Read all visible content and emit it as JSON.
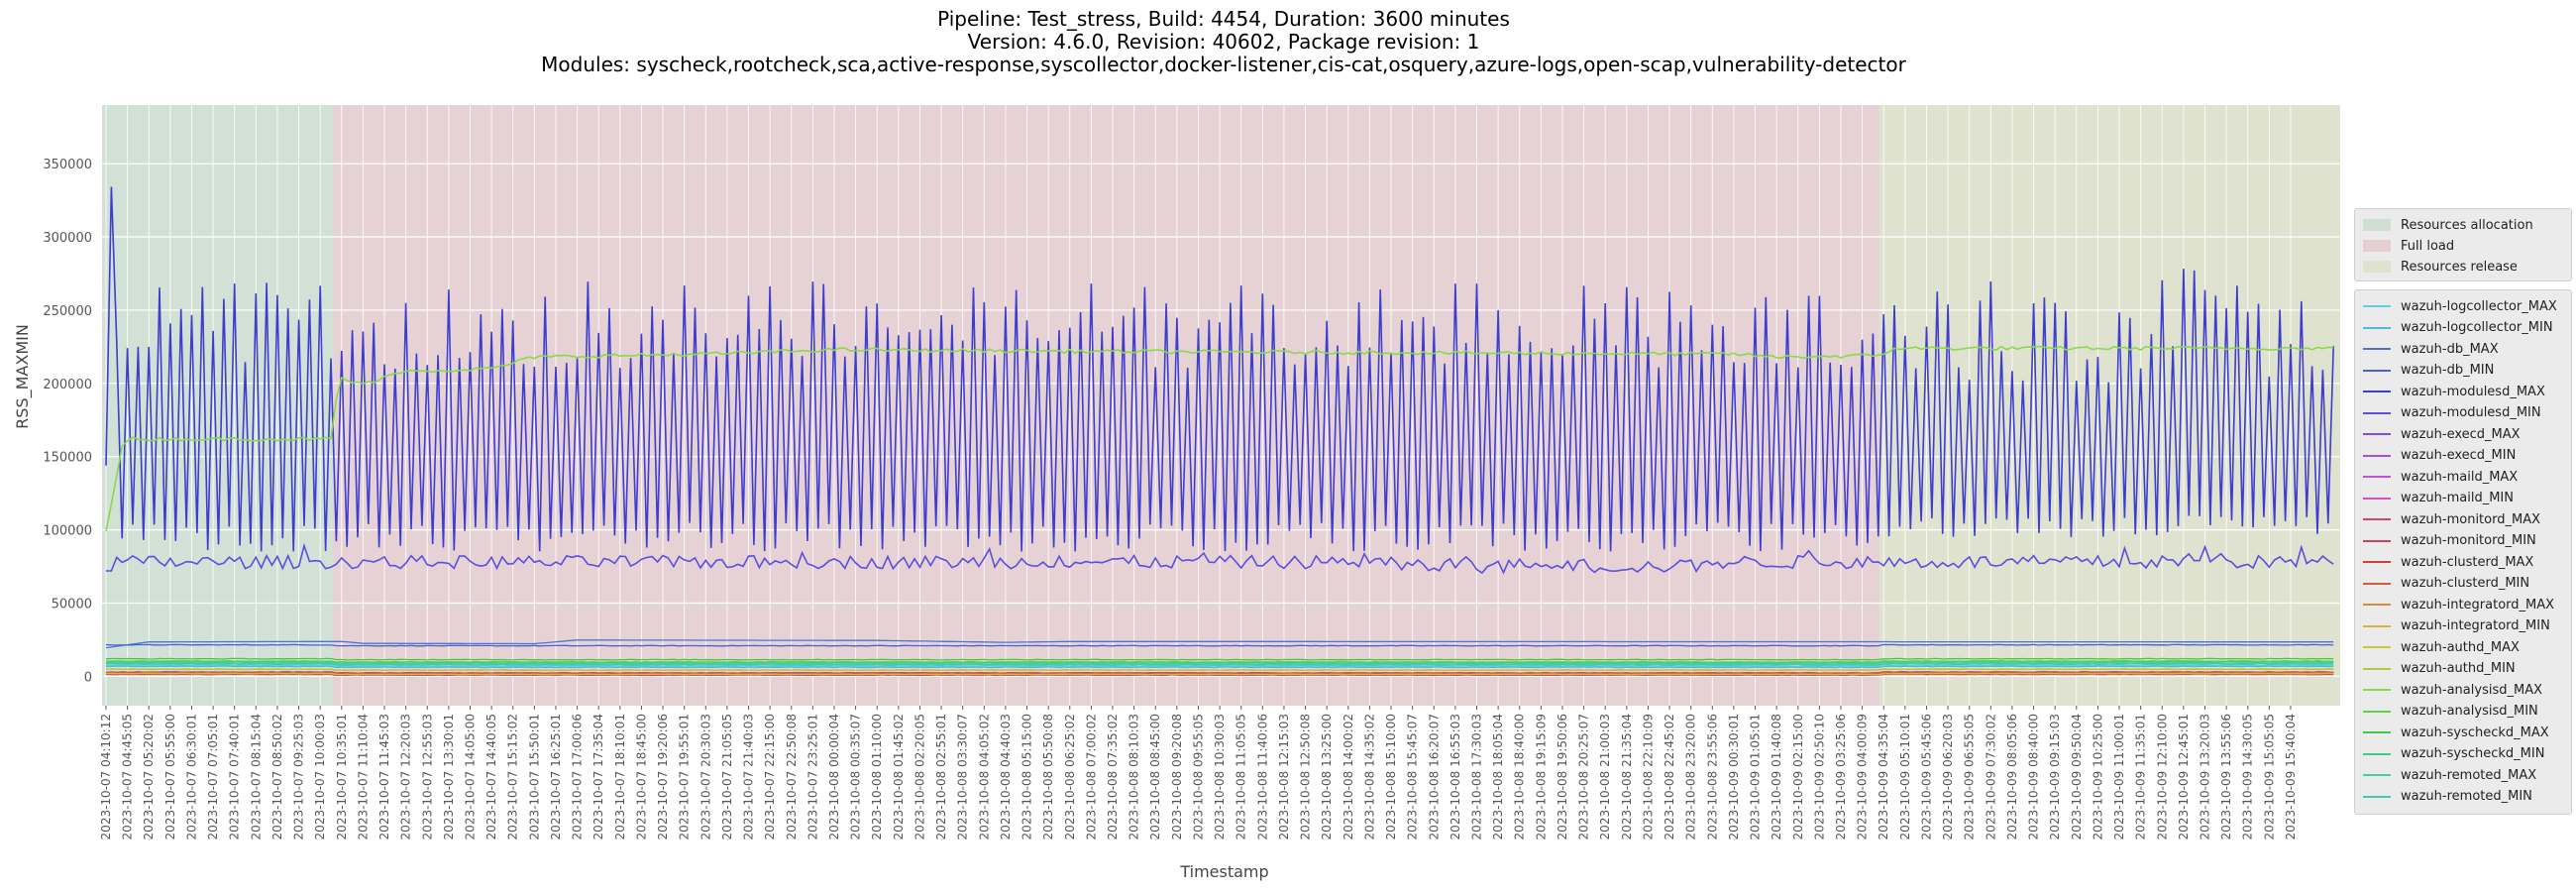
{
  "chart_data": {
    "type": "line",
    "title_lines": [
      "Pipeline: Test_stress, Build: 4454, Duration: 3600 minutes",
      "Version: 4.6.0, Revision: 40602, Package revision: 1",
      "Modules: syscheck,rootcheck,sca,active-response,syscollector,docker-listener,cis-cat,osquery,azure-logs,open-scap,vulnerability-detector"
    ],
    "xlabel": "Timestamp",
    "ylabel": "RSS_MAXMIN",
    "ylim": [
      -20000,
      390000
    ],
    "yticks": [
      0,
      50000,
      100000,
      150000,
      200000,
      250000,
      300000,
      350000
    ],
    "grid": true,
    "legend_position": "right",
    "x_ticks": [
      "2023-10-07 04:10:12",
      "2023-10-07 04:45:05",
      "2023-10-07 05:20:02",
      "2023-10-07 05:55:00",
      "2023-10-07 06:30:01",
      "2023-10-07 07:05:01",
      "2023-10-07 07:40:01",
      "2023-10-07 08:15:04",
      "2023-10-07 08:50:02",
      "2023-10-07 09:25:03",
      "2023-10-07 10:00:03",
      "2023-10-07 10:35:01",
      "2023-10-07 11:10:04",
      "2023-10-07 11:45:03",
      "2023-10-07 12:20:03",
      "2023-10-07 12:55:03",
      "2023-10-07 13:30:01",
      "2023-10-07 14:05:00",
      "2023-10-07 14:40:05",
      "2023-10-07 15:15:02",
      "2023-10-07 15:50:01",
      "2023-10-07 16:25:01",
      "2023-10-07 17:00:06",
      "2023-10-07 17:35:04",
      "2023-10-07 18:10:01",
      "2023-10-07 18:45:00",
      "2023-10-07 19:20:06",
      "2023-10-07 19:55:01",
      "2023-10-07 20:30:03",
      "2023-10-07 21:05:05",
      "2023-10-07 21:40:03",
      "2023-10-07 22:15:00",
      "2023-10-07 22:50:08",
      "2023-10-07 23:25:01",
      "2023-10-08 00:00:04",
      "2023-10-08 00:35:07",
      "2023-10-08 01:10:00",
      "2023-10-08 01:45:02",
      "2023-10-08 02:20:05",
      "2023-10-08 02:55:01",
      "2023-10-08 03:30:07",
      "2023-10-08 04:05:02",
      "2023-10-08 04:40:03",
      "2023-10-08 05:15:00",
      "2023-10-08 05:50:08",
      "2023-10-08 06:25:02",
      "2023-10-08 07:00:02",
      "2023-10-08 07:35:02",
      "2023-10-08 08:10:03",
      "2023-10-08 08:45:00",
      "2023-10-08 09:20:08",
      "2023-10-08 09:55:05",
      "2023-10-08 10:30:03",
      "2023-10-08 11:05:05",
      "2023-10-08 11:40:06",
      "2023-10-08 12:15:03",
      "2023-10-08 12:50:08",
      "2023-10-08 13:25:00",
      "2023-10-08 14:00:02",
      "2023-10-08 14:35:02",
      "2023-10-08 15:10:00",
      "2023-10-08 15:45:07",
      "2023-10-08 16:20:07",
      "2023-10-08 16:55:03",
      "2023-10-08 17:30:03",
      "2023-10-08 18:05:04",
      "2023-10-08 18:40:00",
      "2023-10-08 19:15:09",
      "2023-10-08 19:50:06",
      "2023-10-08 20:25:07",
      "2023-10-08 21:00:03",
      "2023-10-08 21:35:04",
      "2023-10-08 22:10:09",
      "2023-10-08 22:45:02",
      "2023-10-08 23:20:00",
      "2023-10-08 23:55:06",
      "2023-10-09 00:30:01",
      "2023-10-09 01:05:01",
      "2023-10-09 01:40:08",
      "2023-10-09 02:15:00",
      "2023-10-09 02:50:10",
      "2023-10-09 03:25:06",
      "2023-10-09 04:00:09",
      "2023-10-09 04:35:04",
      "2023-10-09 05:10:01",
      "2023-10-09 05:45:06",
      "2023-10-09 06:20:03",
      "2023-10-09 06:55:05",
      "2023-10-09 07:30:02",
      "2023-10-09 08:05:06",
      "2023-10-09 08:40:00",
      "2023-10-09 09:15:03",
      "2023-10-09 09:50:04",
      "2023-10-09 10:25:00",
      "2023-10-09 11:00:01",
      "2023-10-09 11:35:01",
      "2023-10-09 12:10:00",
      "2023-10-09 12:45:01",
      "2023-10-09 13:20:03",
      "2023-10-09 13:55:06",
      "2023-10-09 14:30:05",
      "2023-10-09 15:05:05",
      "2023-10-09 15:40:04"
    ],
    "phases": [
      {
        "name": "Resources allocation",
        "start_tick": 0,
        "end_tick": 10.6,
        "color": "#cfe0d2"
      },
      {
        "name": "Full load",
        "start_tick": 10.6,
        "end_tick": 82.8,
        "color": "#e6cfd2"
      },
      {
        "name": "Resources release",
        "start_tick": 82.8,
        "end_tick": 104.5,
        "color": "#dfe2cd"
      }
    ],
    "series": [
      {
        "name": "wazuh-logcollector_MAX",
        "color": "#5ecfe2",
        "base": 7500
      },
      {
        "name": "wazuh-logcollector_MIN",
        "color": "#56b6de",
        "base": 6800
      },
      {
        "name": "wazuh-db_MAX",
        "color": "#4a74dc",
        "base": 23500,
        "profile": [
          [
            0,
            19500
          ],
          [
            2,
            23500
          ],
          [
            11,
            23800
          ],
          [
            12,
            22500
          ],
          [
            20,
            22300
          ],
          [
            22,
            24800
          ],
          [
            36,
            24500
          ],
          [
            42,
            23200
          ],
          [
            45,
            23800
          ],
          [
            104,
            23500
          ]
        ]
      },
      {
        "name": "wazuh-db_MIN",
        "color": "#4a5fd8",
        "base": 21500
      },
      {
        "name": "wazuh-modulesd_MAX",
        "color": "#3d3dd0",
        "kind": "sawtooth"
      },
      {
        "name": "wazuh-modulesd_MIN",
        "color": "#5a4fe0",
        "kind": "lowband",
        "base": 78000
      },
      {
        "name": "wazuh-execd_MAX",
        "color": "#7c4fe0",
        "base": 3000
      },
      {
        "name": "wazuh-execd_MIN",
        "color": "#a24fe0",
        "base": 2900
      },
      {
        "name": "wazuh-maild_MAX",
        "color": "#c44fd9",
        "base": 2500
      },
      {
        "name": "wazuh-maild_MIN",
        "color": "#d94fb8",
        "base": 2400
      },
      {
        "name": "wazuh-monitord_MAX",
        "color": "#d9407f",
        "base": 1500
      },
      {
        "name": "wazuh-monitord_MIN",
        "color": "#d93d5a",
        "base": 1400
      },
      {
        "name": "wazuh-clusterd_MAX",
        "color": "#d93a3a",
        "base": 2800
      },
      {
        "name": "wazuh-clusterd_MIN",
        "color": "#d95a3a",
        "base": 2700
      },
      {
        "name": "wazuh-integratord_MAX",
        "color": "#d98a3a",
        "base": 2000
      },
      {
        "name": "wazuh-integratord_MIN",
        "color": "#d9b23a",
        "base": 1900
      },
      {
        "name": "wazuh-authd_MAX",
        "color": "#c9c83a",
        "base": 5000
      },
      {
        "name": "wazuh-authd_MIN",
        "color": "#b5c93a",
        "base": 4800
      },
      {
        "name": "wazuh-analysisd_MAX",
        "color": "#8ad94a",
        "kind": "analysisd"
      },
      {
        "name": "wazuh-analysisd_MIN",
        "color": "#64d240",
        "base": 10500
      },
      {
        "name": "wazuh-syscheckd_MAX",
        "color": "#3ec94a",
        "base": 12000
      },
      {
        "name": "wazuh-syscheckd_MIN",
        "color": "#3dcf7e",
        "base": 9800
      },
      {
        "name": "wazuh-remoted_MAX",
        "color": "#3dd3a6",
        "base": 9000
      },
      {
        "name": "wazuh-remoted_MIN",
        "color": "#40c9b8",
        "base": 8400
      }
    ]
  }
}
